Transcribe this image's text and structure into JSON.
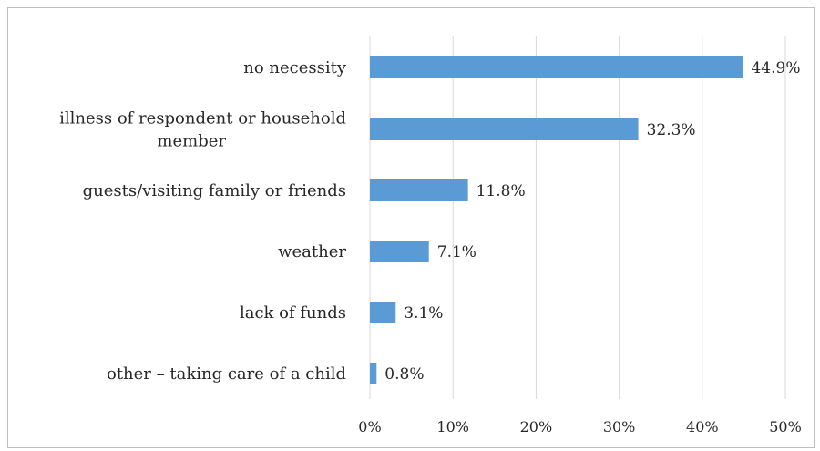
{
  "chart_data": {
    "type": "bar",
    "orientation": "horizontal",
    "title": "",
    "xlabel": "",
    "ylabel": "",
    "categories": [
      [
        "no necessity"
      ],
      [
        "illness of respondent or household",
        "member"
      ],
      [
        "guests/visiting family or friends"
      ],
      [
        "weather"
      ],
      [
        "lack of funds"
      ],
      [
        "other – taking care of a child"
      ]
    ],
    "values": [
      44.9,
      32.3,
      11.8,
      7.1,
      3.1,
      0.8
    ],
    "value_labels": [
      "44.9%",
      "32.3%",
      "11.8%",
      "7.1%",
      "3.1%",
      "0.8%"
    ],
    "xlim": [
      0,
      50
    ],
    "xticks": [
      0,
      10,
      20,
      30,
      40,
      50
    ],
    "xtick_labels": [
      "0%",
      "10%",
      "20%",
      "30%",
      "40%",
      "50%"
    ],
    "grid": true,
    "legend": "none",
    "bar_color": "#5b9bd5",
    "grid_color": "#d9d9d9"
  }
}
